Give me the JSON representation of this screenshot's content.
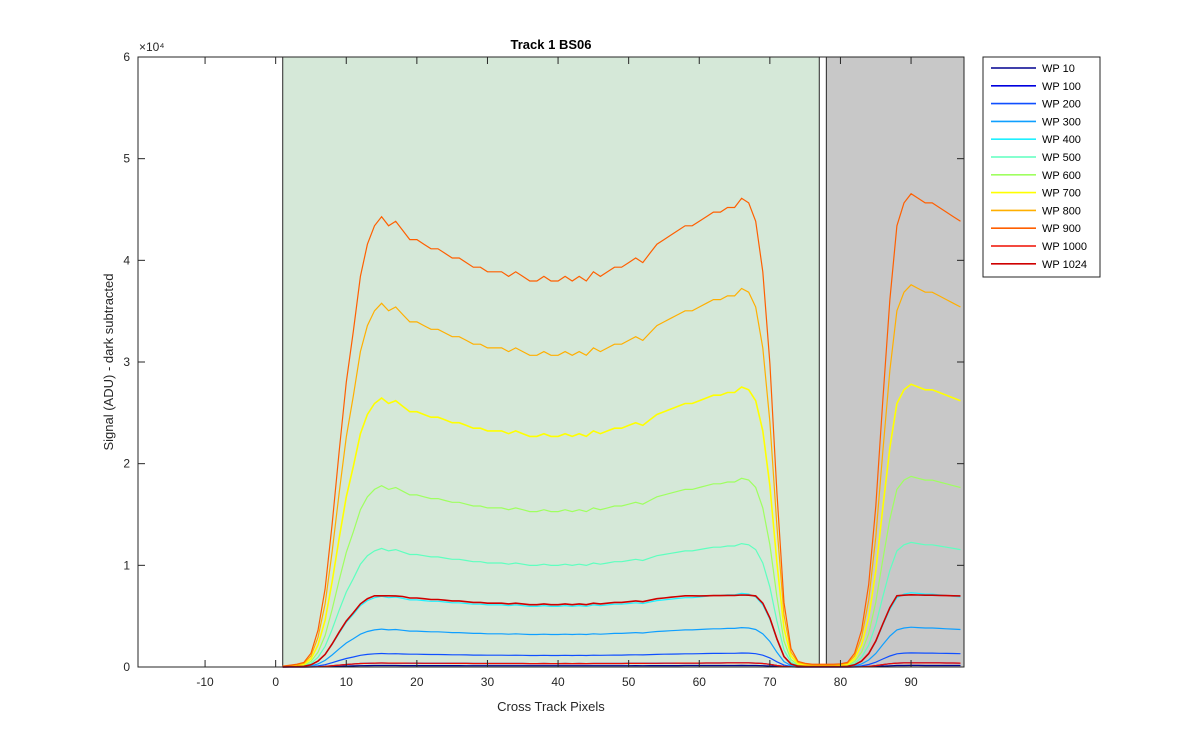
{
  "chart_data": {
    "type": "line",
    "title": "Track 1  BS06",
    "xlabel": "Cross Track Pixels",
    "ylabel": "Signal (ADU) - dark subtracted",
    "y_exponent_label": "×10⁴",
    "xlim": [
      -19.5,
      97.5
    ],
    "ylim": [
      0,
      60000
    ],
    "x_ticks": [
      -10,
      0,
      10,
      20,
      30,
      40,
      50,
      60,
      70,
      80,
      90
    ],
    "x_tick_labels": [
      "-10",
      "0",
      "10",
      "20",
      "30",
      "40",
      "50",
      "60",
      "70",
      "80",
      "90"
    ],
    "y_ticks": [
      0,
      10000,
      20000,
      30000,
      40000,
      50000,
      60000
    ],
    "y_tick_labels": [
      "0",
      "1",
      "2",
      "3",
      "4",
      "5",
      "6"
    ],
    "grid": false,
    "legend_position": "outside-top-right",
    "regions": [
      {
        "x0": 1,
        "x1": 77,
        "color": "#d5e8d8"
      },
      {
        "x0": 78,
        "x1": 97.5,
        "color": "#c8c8c8"
      }
    ],
    "shape": {
      "x": [
        1,
        2,
        3,
        4,
        5,
        6,
        7,
        8,
        9,
        10,
        11,
        12,
        13,
        14,
        15,
        16,
        17,
        18,
        19,
        20,
        21,
        22,
        23,
        24,
        25,
        26,
        27,
        28,
        29,
        30,
        31,
        32,
        33,
        34,
        35,
        36,
        37,
        38,
        39,
        40,
        41,
        42,
        43,
        44,
        45,
        46,
        47,
        48,
        49,
        50,
        51,
        52,
        53,
        54,
        55,
        56,
        57,
        58,
        59,
        60,
        61,
        62,
        63,
        64,
        65,
        66,
        67,
        68,
        69,
        70,
        71,
        72,
        73,
        74,
        75,
        76,
        77,
        78,
        79,
        80,
        81,
        82,
        83,
        84,
        85,
        86,
        87,
        88,
        89,
        90,
        91,
        92,
        93,
        94,
        95,
        96,
        97
      ],
      "y": [
        0.002,
        0.004,
        0.006,
        0.01,
        0.03,
        0.08,
        0.17,
        0.31,
        0.47,
        0.62,
        0.73,
        0.85,
        0.92,
        0.96,
        0.98,
        0.96,
        0.97,
        0.95,
        0.93,
        0.93,
        0.92,
        0.91,
        0.91,
        0.9,
        0.89,
        0.89,
        0.88,
        0.87,
        0.87,
        0.86,
        0.86,
        0.86,
        0.85,
        0.86,
        0.85,
        0.84,
        0.84,
        0.85,
        0.84,
        0.84,
        0.85,
        0.84,
        0.85,
        0.84,
        0.86,
        0.85,
        0.86,
        0.87,
        0.87,
        0.88,
        0.89,
        0.88,
        0.9,
        0.92,
        0.93,
        0.94,
        0.95,
        0.96,
        0.96,
        0.97,
        0.98,
        0.99,
        0.99,
        1.0,
        1.0,
        1.02,
        1.01,
        0.97,
        0.86,
        0.66,
        0.38,
        0.14,
        0.04,
        0.012,
        0.008,
        0.006,
        0.006,
        0.006,
        0.006,
        0.007,
        0.01,
        0.03,
        0.08,
        0.18,
        0.35,
        0.58,
        0.8,
        0.96,
        1.01,
        1.03,
        1.02,
        1.01,
        1.01,
        1.0,
        0.99,
        0.98,
        0.97
      ]
    },
    "series": [
      {
        "name": "WP 10",
        "color": "#00008f",
        "peak": 150
      },
      {
        "name": "WP 100",
        "color": "#0000df",
        "peak": 400
      },
      {
        "name": "WP 200",
        "color": "#0f4fff",
        "peak": 1350
      },
      {
        "name": "WP 300",
        "color": "#0f9fff",
        "peak": 3800
      },
      {
        "name": "WP 400",
        "color": "#1ff0ff",
        "peak": 7100
      },
      {
        "name": "WP 500",
        "color": "#5fffbf",
        "peak": 11900
      },
      {
        "name": "WP 600",
        "color": "#9fff60",
        "peak": 18200
      },
      {
        "name": "WP 700",
        "color": "#ffff00",
        "peak": 27000
      },
      {
        "name": "WP 800",
        "color": "#ffaf00",
        "peak": 36500
      },
      {
        "name": "WP 900",
        "color": "#ff5f00",
        "peak": 45200
      },
      {
        "name": "WP 1000",
        "color": "#ef0f00",
        "peak": 400
      },
      {
        "name": "WP 1024",
        "color": "#cf0000",
        "peak": 7300,
        "flat": true
      }
    ]
  }
}
